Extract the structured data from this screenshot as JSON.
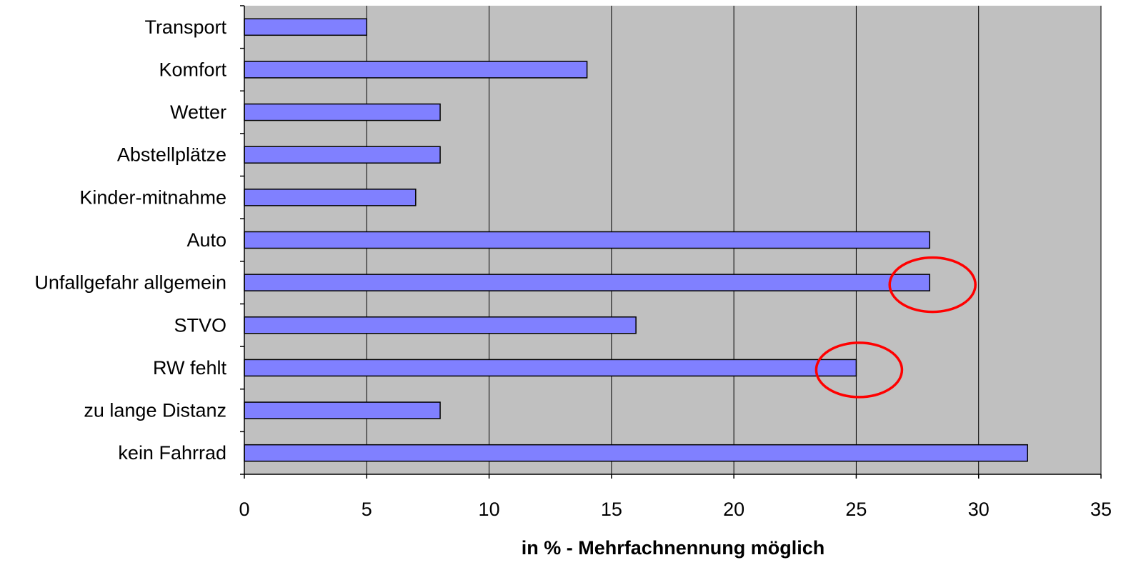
{
  "chart_data": {
    "type": "bar",
    "orientation": "horizontal",
    "title": "",
    "xlabel": "in % - Mehrfachnennung möglich",
    "ylabel": "",
    "xlim": [
      0,
      35
    ],
    "x_ticks": [
      0,
      5,
      10,
      15,
      20,
      25,
      30,
      35
    ],
    "x_tick_labels": [
      "0",
      "5",
      "10",
      "15",
      "20",
      "25",
      "30",
      "35"
    ],
    "grid": true,
    "legend": "none",
    "categories": [
      "Transport",
      "Komfort",
      "Wetter",
      "Abstellplätze",
      "Kinder-mitnahme",
      "Auto",
      "Unfallgefahr allgemein",
      "STVO",
      "RW fehlt",
      "zu lange Distanz",
      "kein Fahrrad"
    ],
    "values": [
      5,
      14,
      8,
      8,
      7,
      28,
      28,
      16,
      25,
      8,
      32
    ],
    "highlighted_categories": [
      "Unfallgefahr allgemein",
      "RW fehlt"
    ],
    "colors": {
      "bar_fill": "#8080ff",
      "plot_background": "#c0c0c0",
      "highlight": "#ff0000"
    }
  }
}
